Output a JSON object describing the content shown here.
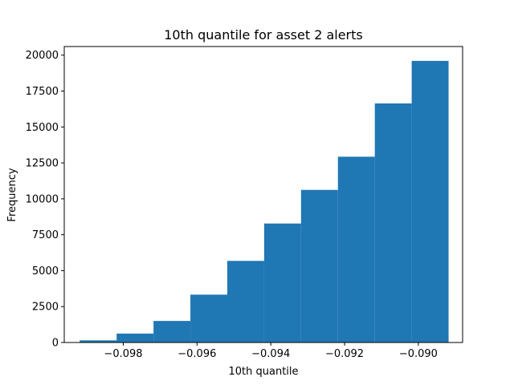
{
  "chart_data": {
    "type": "bar",
    "title": "10th quantile for asset 2 alerts",
    "xlabel": "10th quantile",
    "ylabel": "Frequency",
    "bar_color": "#1f77b4",
    "bin_edges": [
      -0.09918,
      -0.09818,
      -0.09718,
      -0.09618,
      -0.09518,
      -0.09418,
      -0.09318,
      -0.09218,
      -0.09118,
      -0.09018,
      -0.08918
    ],
    "values": [
      150,
      620,
      1500,
      3330,
      5680,
      8280,
      10620,
      12930,
      16640,
      19600
    ],
    "xlim": [
      -0.0996,
      -0.0888
    ],
    "ylim": [
      0,
      20600
    ],
    "xticks": [
      -0.098,
      -0.096,
      -0.094,
      -0.092,
      -0.09
    ],
    "xtick_labels": [
      "−0.098",
      "−0.096",
      "−0.094",
      "−0.092",
      "−0.090"
    ],
    "yticks": [
      0,
      2500,
      5000,
      7500,
      10000,
      12500,
      15000,
      17500,
      20000
    ],
    "ytick_labels": [
      "0",
      "2500",
      "5000",
      "7500",
      "10000",
      "12500",
      "15000",
      "17500",
      "20000"
    ],
    "grid": false
  }
}
